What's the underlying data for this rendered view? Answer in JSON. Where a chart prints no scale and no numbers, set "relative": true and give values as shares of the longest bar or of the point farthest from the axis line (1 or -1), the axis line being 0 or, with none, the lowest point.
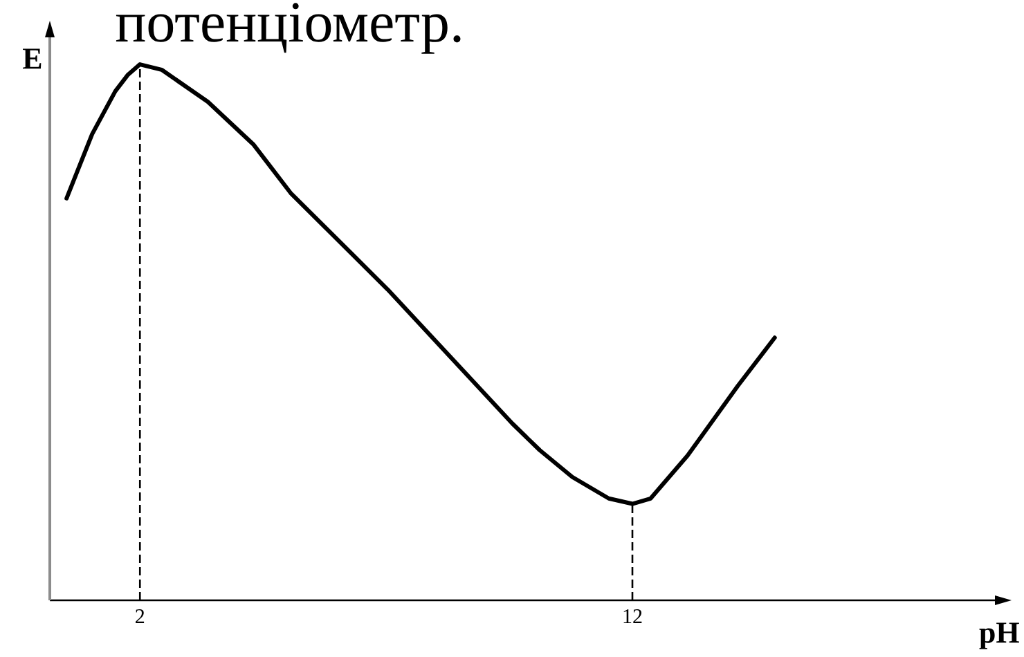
{
  "chart_data": {
    "type": "line",
    "relative": true,
    "xlabel": "pH",
    "ylabel": "E",
    "annotations": [
      "потенціометр."
    ],
    "xlim": [
      0.17,
      19.39
    ],
    "xticks": [
      2,
      12
    ],
    "grid": false,
    "marker": "none",
    "series": [
      {
        "x": [
          0.51,
          1.03,
          1.5,
          1.75,
          2.0,
          2.44,
          3.38,
          4.31,
          5.06,
          7.03,
          9.56,
          10.12,
          10.78,
          11.52,
          12.0,
          12.37,
          13.12,
          14.14,
          14.89
        ],
        "values": [
          0.75,
          0.87,
          0.95,
          0.98,
          1.0,
          0.99,
          0.93,
          0.85,
          0.76,
          0.58,
          0.33,
          0.28,
          0.23,
          0.19,
          0.18,
          0.19,
          0.27,
          0.4,
          0.49
        ],
        "color": "#000000",
        "line_style": "solid"
      }
    ],
    "ref_lines": [
      {
        "axis": "x",
        "value": 2,
        "color": "#000000",
        "line_style": "dashed"
      },
      {
        "axis": "x",
        "value": 12,
        "color": "#000000",
        "line_style": "dashed"
      }
    ]
  }
}
